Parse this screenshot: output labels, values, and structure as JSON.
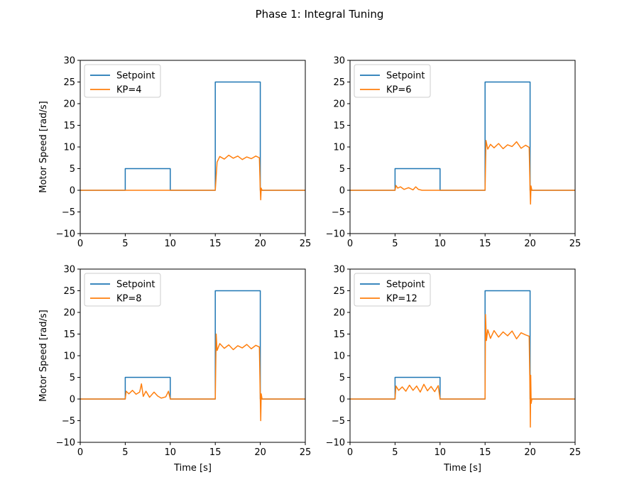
{
  "figure": {
    "title": "Phase 1: Integral Tuning"
  },
  "colors": {
    "setpoint": "#1f77b4",
    "response": "#ff7f0e",
    "axes": "#000000",
    "legend_border": "#cccccc"
  },
  "chart_data": [
    {
      "type": "line",
      "title": "",
      "xlabel": "",
      "ylabel": "Motor Speed [rad/s]",
      "xlim": [
        0,
        25
      ],
      "ylim": [
        -10,
        30
      ],
      "xticks": [
        "0",
        "5",
        "10",
        "15",
        "20",
        "25"
      ],
      "yticks": [
        "-10",
        "-5",
        "0",
        "5",
        "10",
        "15",
        "20",
        "25",
        "30"
      ],
      "grid": false,
      "legend": "upper left",
      "series": [
        {
          "name": "Setpoint",
          "x": [
            0,
            5,
            5,
            10,
            10,
            15,
            15,
            20,
            20,
            25
          ],
          "y": [
            0,
            0,
            5,
            5,
            0,
            0,
            25,
            25,
            0,
            0
          ]
        },
        {
          "name": "KP=4",
          "x": [
            0,
            15,
            15.2,
            15.5,
            16,
            16.5,
            17,
            17.5,
            18,
            18.5,
            19,
            19.5,
            19.9,
            20,
            20.05,
            20.1,
            20.2,
            25
          ],
          "y": [
            0,
            0,
            6.5,
            7.8,
            7.2,
            8.1,
            7.4,
            7.9,
            7.1,
            7.7,
            7.3,
            7.9,
            7.5,
            0,
            -2.2,
            0.5,
            0,
            0
          ]
        }
      ]
    },
    {
      "type": "line",
      "title": "",
      "xlabel": "",
      "ylabel": "",
      "xlim": [
        0,
        25
      ],
      "ylim": [
        -10,
        30
      ],
      "xticks": [
        "0",
        "5",
        "10",
        "15",
        "20",
        "25"
      ],
      "yticks": [
        "-10",
        "-5",
        "0",
        "5",
        "10",
        "15",
        "20",
        "25",
        "30"
      ],
      "grid": false,
      "legend": "upper left",
      "series": [
        {
          "name": "Setpoint",
          "x": [
            0,
            5,
            5,
            10,
            10,
            15,
            15,
            20,
            20,
            25
          ],
          "y": [
            0,
            0,
            5,
            5,
            0,
            0,
            25,
            25,
            0,
            0
          ]
        },
        {
          "name": "KP=6",
          "x": [
            0,
            5,
            5.1,
            5.3,
            5.6,
            6,
            6.5,
            7,
            7.3,
            7.6,
            8,
            10,
            15,
            15.1,
            15.3,
            15.6,
            16,
            16.5,
            17,
            17.5,
            18,
            18.5,
            19,
            19.5,
            19.9,
            20,
            20.05,
            20.1,
            20.2,
            25
          ],
          "y": [
            0,
            0,
            1.1,
            0.5,
            0.8,
            0.2,
            0.6,
            0.1,
            0.8,
            0.2,
            0,
            0,
            0,
            11.5,
            9.5,
            10.6,
            9.8,
            10.8,
            9.6,
            10.5,
            10.1,
            11.2,
            9.7,
            10.4,
            9.9,
            0,
            -3.2,
            1.0,
            0,
            0
          ]
        }
      ]
    },
    {
      "type": "line",
      "title": "",
      "xlabel": "Time [s]",
      "ylabel": "Motor Speed [rad/s]",
      "xlim": [
        0,
        25
      ],
      "ylim": [
        -10,
        30
      ],
      "xticks": [
        "0",
        "5",
        "10",
        "15",
        "20",
        "25"
      ],
      "yticks": [
        "-10",
        "-5",
        "0",
        "5",
        "10",
        "15",
        "20",
        "25",
        "30"
      ],
      "grid": false,
      "legend": "upper left",
      "series": [
        {
          "name": "Setpoint",
          "x": [
            0,
            5,
            5,
            10,
            10,
            15,
            15,
            20,
            20,
            25
          ],
          "y": [
            0,
            0,
            5,
            5,
            0,
            0,
            25,
            25,
            0,
            0
          ]
        },
        {
          "name": "KP=8",
          "x": [
            0,
            5,
            5.1,
            5.4,
            5.8,
            6.2,
            6.6,
            6.8,
            7.0,
            7.3,
            7.7,
            8.2,
            8.6,
            9.0,
            9.5,
            9.8,
            10,
            15,
            15.1,
            15.2,
            15.5,
            16,
            16.5,
            17,
            17.5,
            18,
            18.5,
            19,
            19.5,
            19.9,
            20,
            20.05,
            20.1,
            20.2,
            25
          ],
          "y": [
            0,
            0,
            1.8,
            1.2,
            2.0,
            1.1,
            1.6,
            3.5,
            0.6,
            1.8,
            0.4,
            1.6,
            0.7,
            0.2,
            0.5,
            1.8,
            0,
            0,
            15.0,
            11.2,
            12.8,
            11.7,
            12.5,
            11.4,
            12.3,
            11.8,
            12.6,
            11.6,
            12.4,
            12.0,
            0,
            -5.0,
            1.2,
            0,
            0
          ]
        }
      ]
    },
    {
      "type": "line",
      "title": "",
      "xlabel": "Time [s]",
      "ylabel": "",
      "xlim": [
        0,
        25
      ],
      "ylim": [
        -10,
        30
      ],
      "xticks": [
        "0",
        "5",
        "10",
        "15",
        "20",
        "25"
      ],
      "yticks": [
        "-10",
        "-5",
        "0",
        "5",
        "10",
        "15",
        "20",
        "25",
        "30"
      ],
      "grid": false,
      "legend": "upper left",
      "series": [
        {
          "name": "Setpoint",
          "x": [
            0,
            5,
            5,
            10,
            10,
            15,
            15,
            20,
            20,
            25
          ],
          "y": [
            0,
            0,
            5,
            5,
            0,
            0,
            25,
            25,
            0,
            0
          ]
        },
        {
          "name": "KP=12",
          "x": [
            0,
            5,
            5.1,
            5.4,
            5.8,
            6.2,
            6.6,
            7.0,
            7.4,
            7.8,
            8.2,
            8.6,
            9.0,
            9.4,
            9.8,
            10,
            15,
            15.05,
            15.15,
            15.3,
            15.6,
            16,
            16.5,
            17,
            17.5,
            18,
            18.5,
            19,
            19.5,
            19.9,
            20,
            20.03,
            20.07,
            20.12,
            20.2,
            25
          ],
          "y": [
            0,
            0,
            3.0,
            2.0,
            2.8,
            1.8,
            3.2,
            2.0,
            3.0,
            1.6,
            3.4,
            1.9,
            2.9,
            1.7,
            3.1,
            0,
            0,
            19.5,
            13.5,
            16.0,
            14.0,
            15.8,
            14.3,
            15.5,
            14.6,
            15.7,
            13.9,
            15.3,
            14.8,
            14.5,
            0,
            -6.5,
            5.5,
            -1.0,
            0,
            0
          ]
        }
      ]
    }
  ]
}
